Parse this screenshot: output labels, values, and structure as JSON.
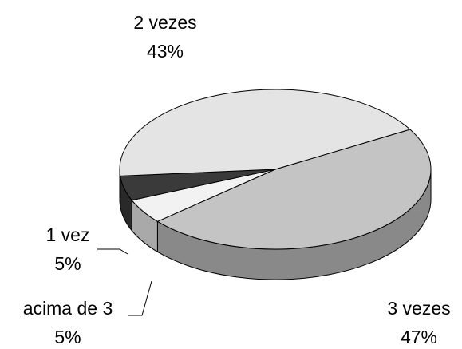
{
  "chart_data": {
    "type": "pie",
    "categories": [
      "3 vezes",
      "acima de 3",
      "1 vez",
      "2 vezes"
    ],
    "values": [
      47,
      5,
      5,
      43
    ],
    "value_labels": [
      "47%",
      "5%",
      "5%",
      "43%"
    ],
    "colors": [
      "#c4c4c4",
      "#f2f2f2",
      "#3a3a3a",
      "#e4e4e4"
    ]
  }
}
